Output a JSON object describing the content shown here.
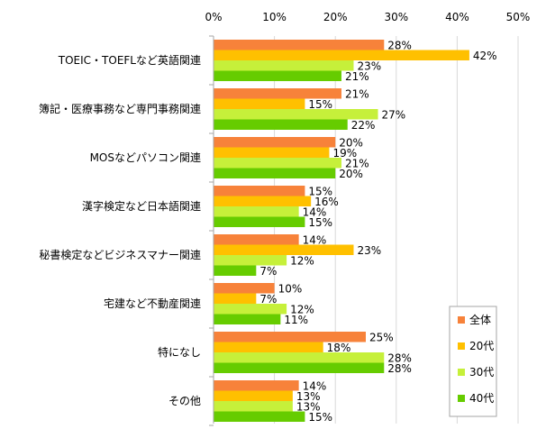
{
  "colors": {
    "series": [
      "#f7823a",
      "#ffc000",
      "#c6f03a",
      "#66cc00"
    ],
    "grid": "#d9d9d9",
    "axis": "#a6a6a6",
    "legend_border": "#a6a6a6"
  },
  "chart_data": {
    "type": "bar",
    "orientation": "horizontal",
    "title": "",
    "xlabel": "",
    "ylabel": "",
    "xlim": [
      0,
      50
    ],
    "x_ticks": [
      "0%",
      "10%",
      "20%",
      "30%",
      "40%",
      "50%"
    ],
    "x_tick_values": [
      0,
      10,
      20,
      30,
      40,
      50
    ],
    "grid": true,
    "legend_position": "bottom-right",
    "value_suffix": "%",
    "categories": [
      "TOEIC・TOEFLなど英語関連",
      "簿記・医療事務など専門事務関連",
      "MOSなどパソコン関連",
      "漢字検定など日本語関連",
      "秘書検定などビジネスマナー関連",
      "宅建など不動産関連",
      "特になし",
      "その他"
    ],
    "series": [
      {
        "name": "全体",
        "values": [
          28,
          21,
          20,
          15,
          14,
          10,
          25,
          14
        ]
      },
      {
        "name": "20代",
        "values": [
          42,
          15,
          19,
          16,
          23,
          7,
          18,
          13
        ]
      },
      {
        "name": "30代",
        "values": [
          23,
          27,
          21,
          14,
          12,
          12,
          28,
          13
        ]
      },
      {
        "name": "40代",
        "values": [
          21,
          22,
          20,
          15,
          7,
          11,
          28,
          15
        ]
      }
    ]
  }
}
